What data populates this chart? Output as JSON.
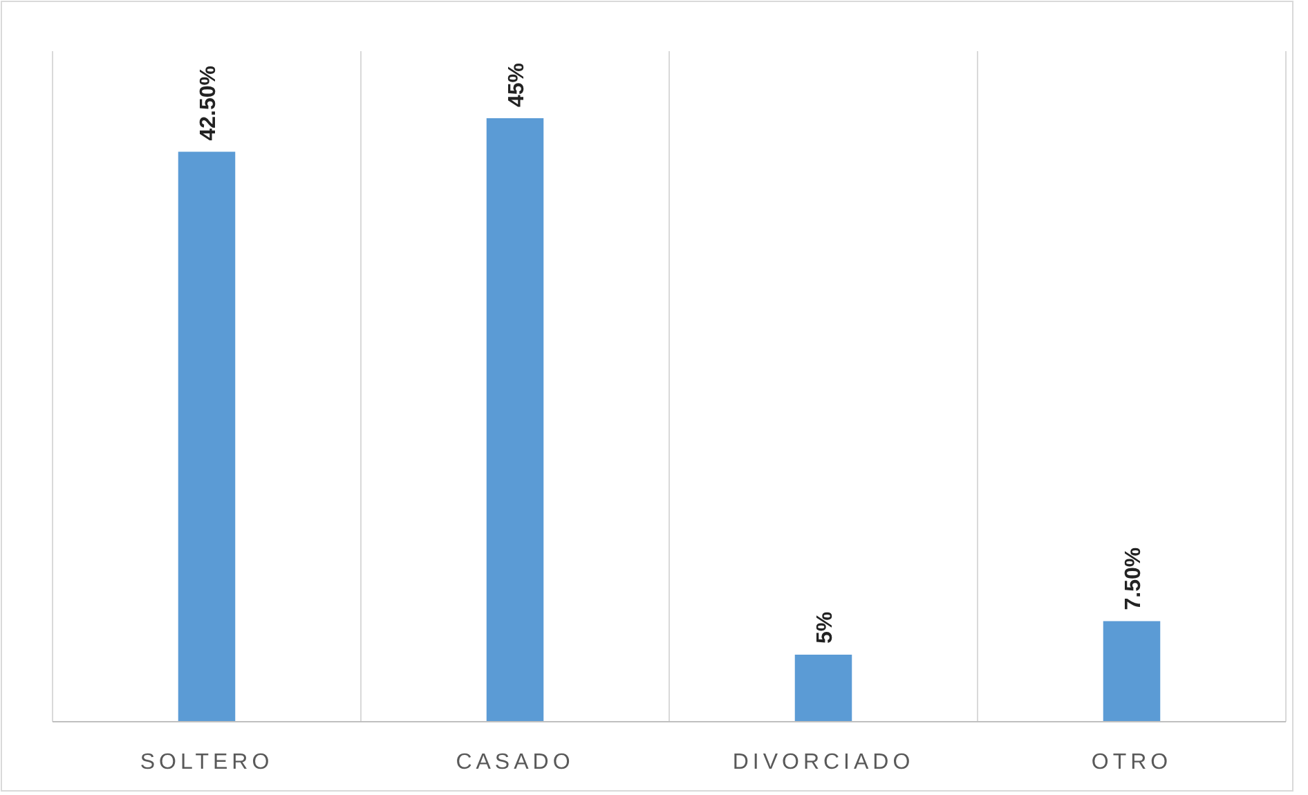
{
  "chart_data": {
    "type": "bar",
    "categories": [
      "SOLTERO",
      "CASADO",
      "DIVORCIADO",
      "OTRO"
    ],
    "values": [
      42.5,
      45,
      5,
      7.5
    ],
    "value_labels": [
      "42.50%",
      "45%",
      "5%",
      "7.50%"
    ],
    "color": "#5b9bd5",
    "ylim": [
      0,
      50
    ],
    "grid": "x",
    "tick_labels": "x"
  }
}
